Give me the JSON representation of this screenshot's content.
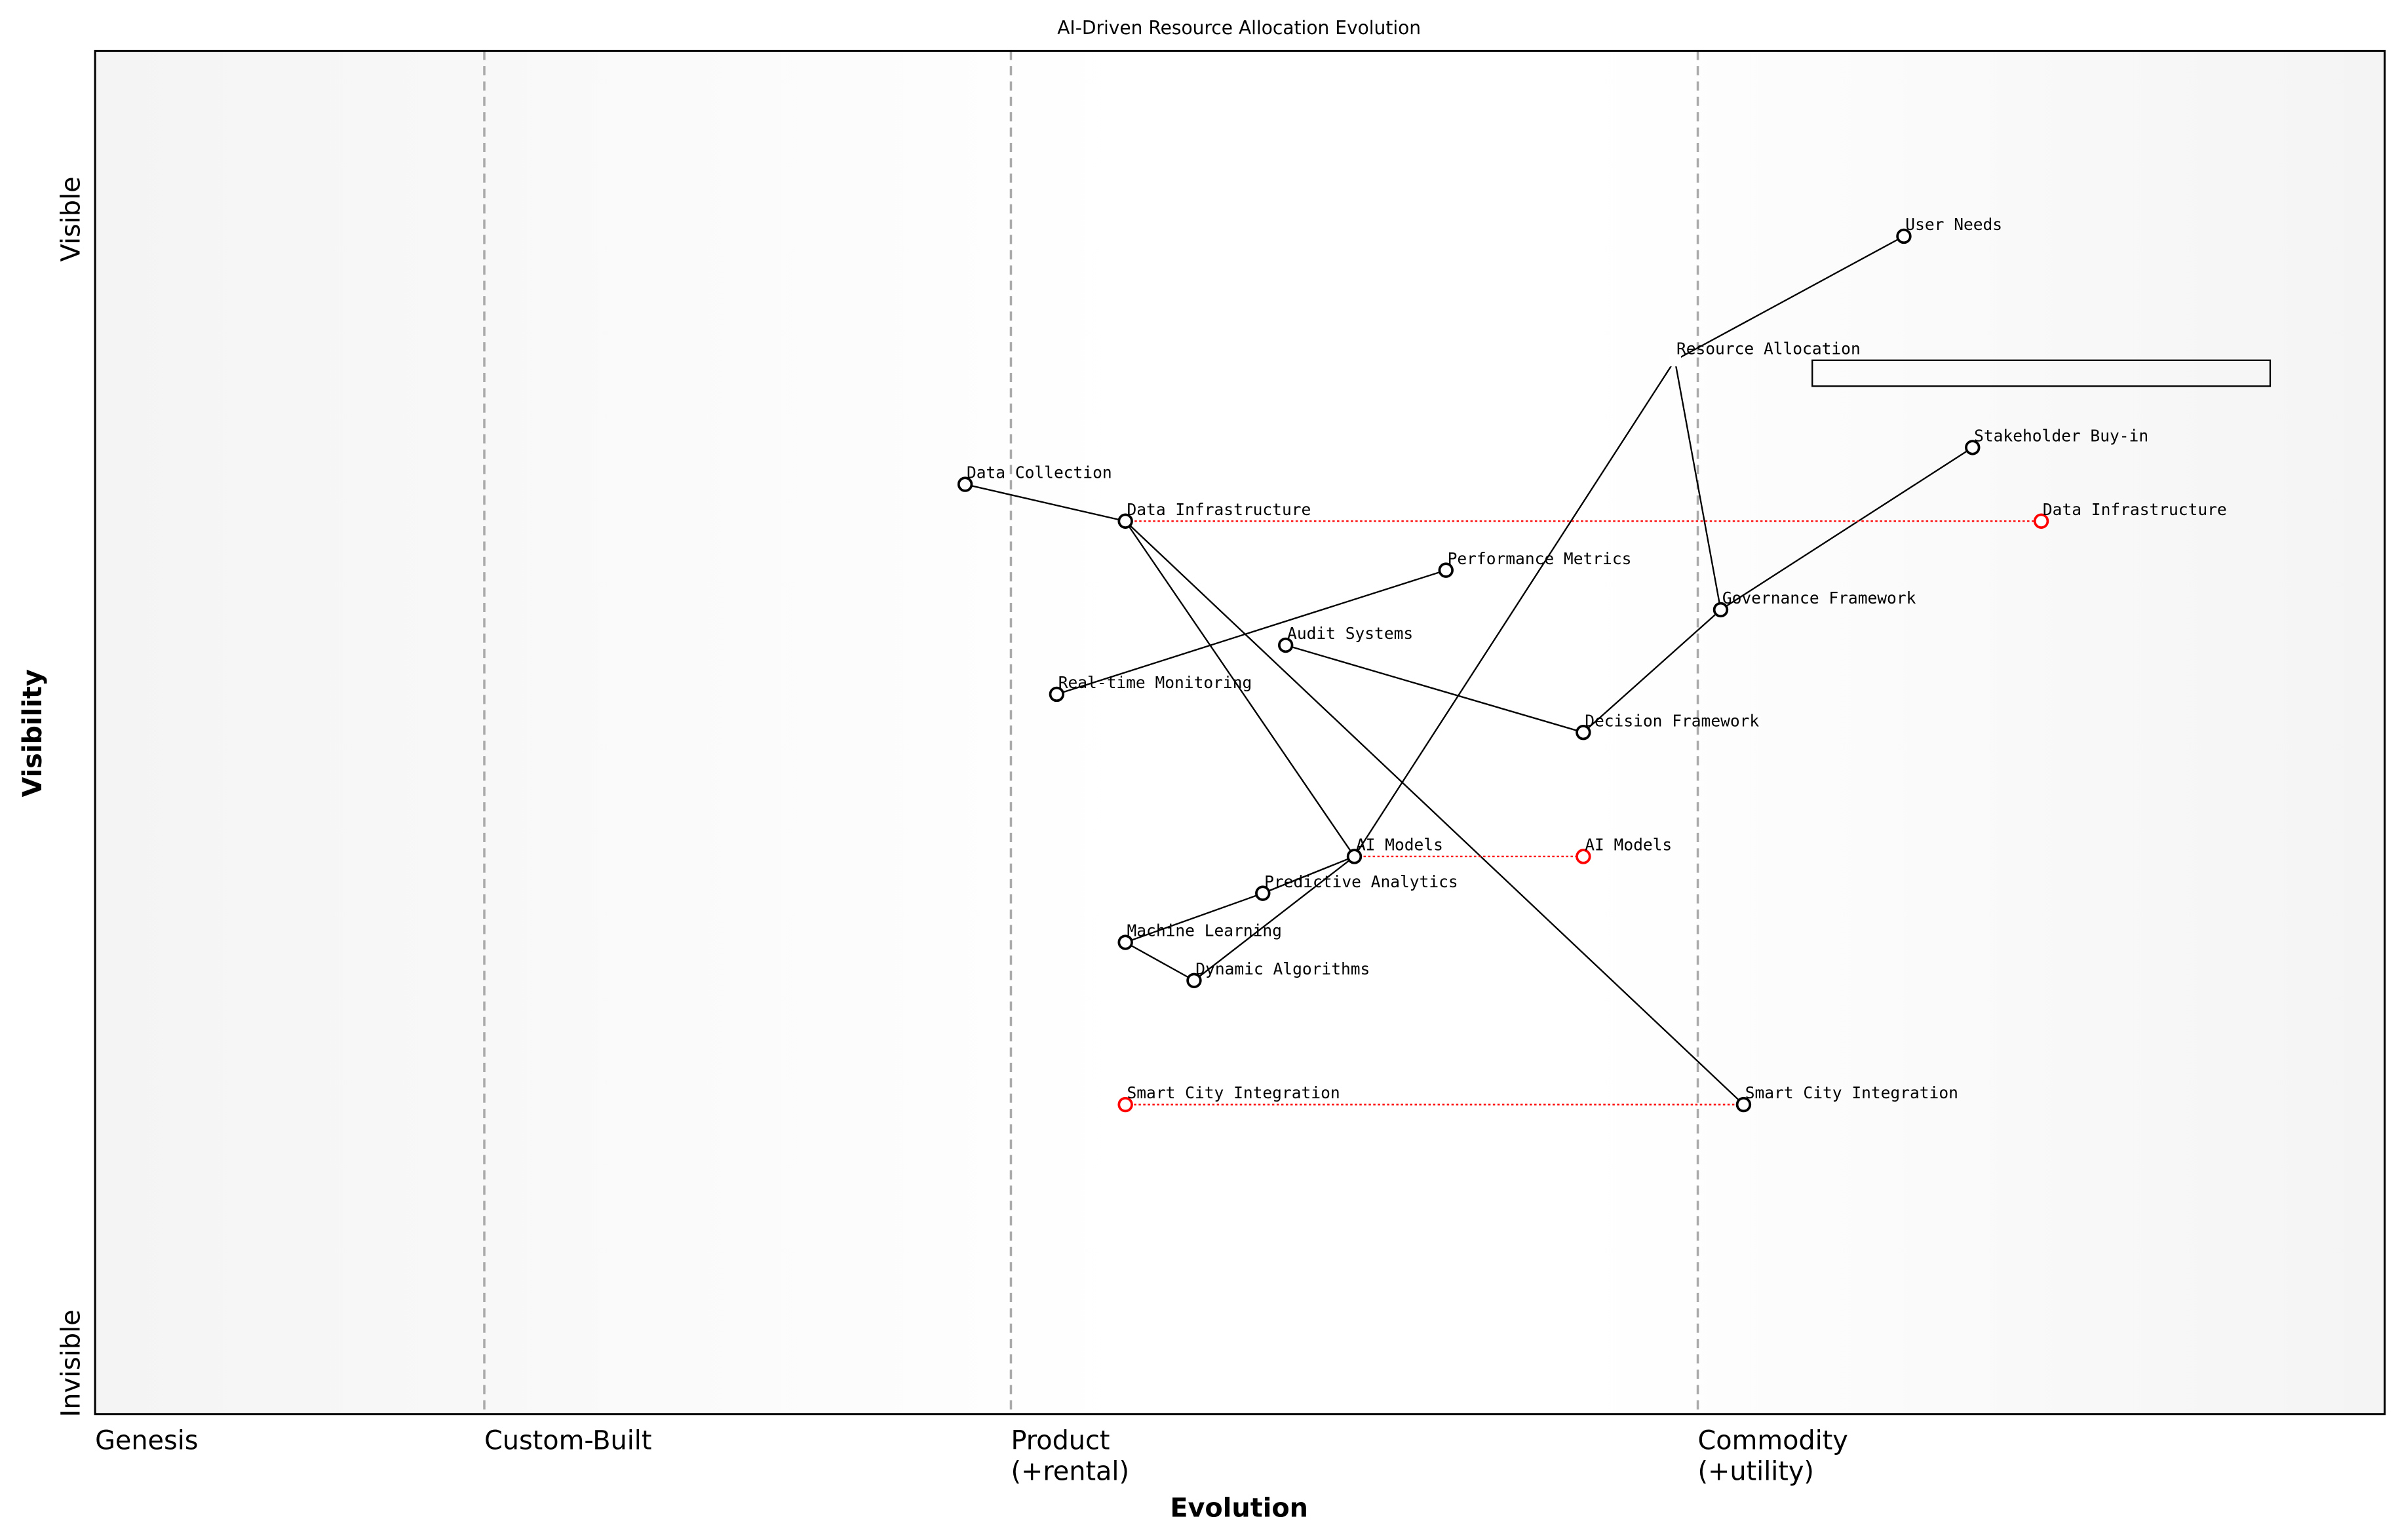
{
  "chart_data": {
    "type": "wardley-map",
    "title": "AI-Driven Resource Allocation Evolution",
    "xlabel": "Evolution",
    "ylabel": "Visibility",
    "y_ticks": {
      "top": "Visible",
      "bottom": "Invisible"
    },
    "xlim": [
      0,
      1
    ],
    "ylim": [
      0,
      1
    ],
    "stages": [
      {
        "label": "Genesis",
        "x": 0.0
      },
      {
        "label": "Custom-Built",
        "x": 0.17
      },
      {
        "label": "Product\n(+rental)",
        "x": 0.4
      },
      {
        "label": "Commodity\n(+utility)",
        "x": 0.7
      }
    ],
    "components": [
      {
        "name": "User Needs",
        "evolution": 0.79,
        "visibility": 0.864
      },
      {
        "name": "Resource Allocation",
        "evolution": 0.69,
        "visibility": 0.773,
        "hidden_marker": true
      },
      {
        "name": "Stakeholder Buy-in",
        "evolution": 0.82,
        "visibility": 0.709
      },
      {
        "name": "Data Collection",
        "evolution": 0.38,
        "visibility": 0.682
      },
      {
        "name": "Data Infrastructure",
        "evolution": 0.45,
        "visibility": 0.655
      },
      {
        "name": "Performance Metrics",
        "evolution": 0.59,
        "visibility": 0.619
      },
      {
        "name": "Governance Framework",
        "evolution": 0.71,
        "visibility": 0.59
      },
      {
        "name": "Audit Systems",
        "evolution": 0.52,
        "visibility": 0.564
      },
      {
        "name": "Real-time Monitoring",
        "evolution": 0.42,
        "visibility": 0.528
      },
      {
        "name": "Decision Framework",
        "evolution": 0.65,
        "visibility": 0.5
      },
      {
        "name": "AI Models",
        "evolution": 0.55,
        "visibility": 0.409
      },
      {
        "name": "Predictive Analytics",
        "evolution": 0.51,
        "visibility": 0.382
      },
      {
        "name": "Machine Learning",
        "evolution": 0.45,
        "visibility": 0.346
      },
      {
        "name": "Dynamic Algorithms",
        "evolution": 0.48,
        "visibility": 0.318
      },
      {
        "name": "Smart City Integration",
        "evolution": 0.72,
        "visibility": 0.227
      }
    ],
    "evolutions": [
      {
        "name": "Data Infrastructure",
        "to_evolution": 0.85
      },
      {
        "name": "AI Models",
        "to_evolution": 0.65
      },
      {
        "name": "Smart City Integration",
        "to_evolution": 0.45
      }
    ],
    "links": [
      [
        "User Needs",
        "Resource Allocation"
      ],
      [
        "Resource Allocation",
        "AI Models"
      ],
      [
        "Resource Allocation",
        "Governance Framework"
      ],
      [
        "Governance Framework",
        "Stakeholder Buy-in"
      ],
      [
        "Governance Framework",
        "Decision Framework"
      ],
      [
        "Decision Framework",
        "Audit Systems"
      ],
      [
        "Real-time Monitoring",
        "Performance Metrics"
      ],
      [
        "Data Collection",
        "Data Infrastructure"
      ],
      [
        "Data Infrastructure",
        "AI Models"
      ],
      [
        "Data Infrastructure",
        "Smart City Integration"
      ],
      [
        "AI Models",
        "Predictive Analytics"
      ],
      [
        "Predictive Analytics",
        "Machine Learning"
      ],
      [
        "Machine Learning",
        "Dynamic Algorithms"
      ],
      [
        "Dynamic Algorithms",
        "AI Models"
      ]
    ],
    "annotation_box": {
      "evolution": [
        0.75,
        0.95
      ],
      "visibility": [
        0.754,
        0.773
      ],
      "text": ""
    },
    "colors": {
      "component": "#000000",
      "evolved": "#ff0000",
      "stage_line": "#aaaaaa",
      "background_edge": "#f4f4f4"
    }
  }
}
